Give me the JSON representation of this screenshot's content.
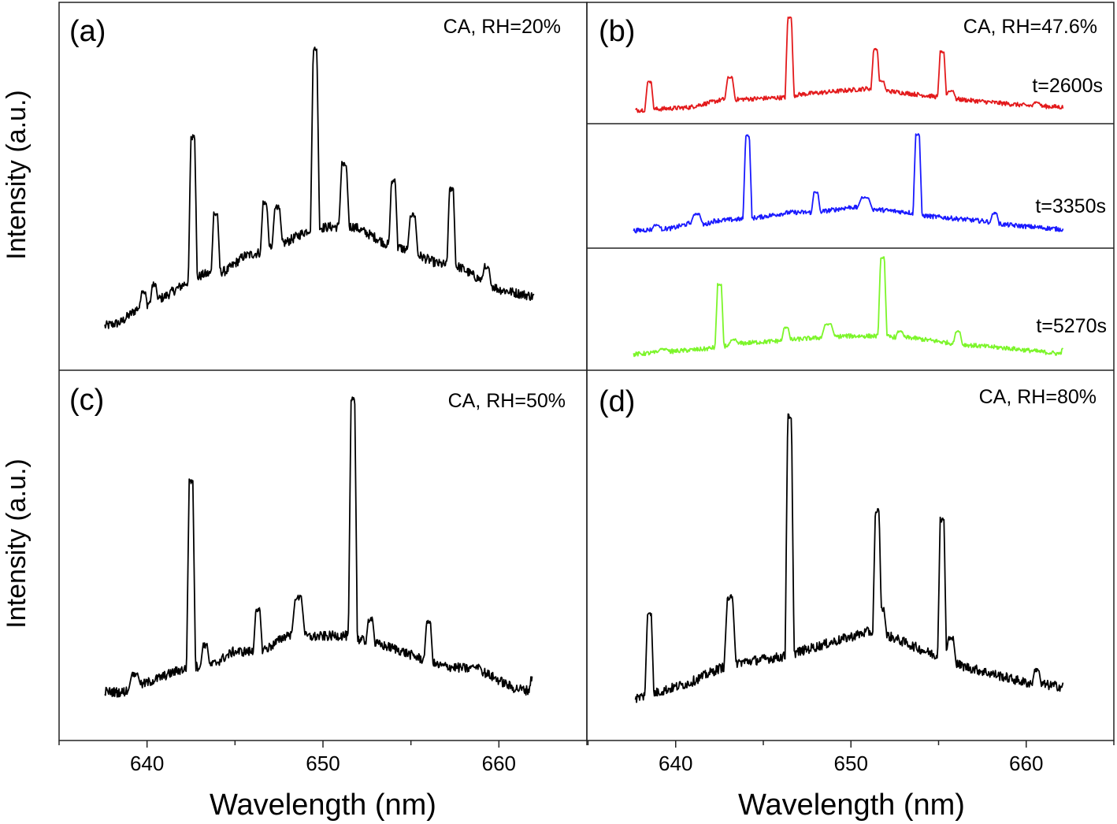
{
  "figure": {
    "ylabel": "Intensity (a.u.)",
    "xlabel": "Wavelength (nm)"
  },
  "chart_data": [
    {
      "type": "line",
      "panel": "(a)",
      "annotation": "CA, RH=20%",
      "xlabel": "Wavelength (nm)",
      "ylabel": "Intensity (a.u.)",
      "xlim": [
        635,
        665
      ],
      "ylim": [
        0,
        100
      ],
      "xticks": [
        640,
        650,
        660
      ],
      "grid": false,
      "series": [
        {
          "color": "#000000",
          "baseline": [
            [
              637.6,
              12
            ],
            [
              638.5,
              13
            ],
            [
              639.5,
              17
            ],
            [
              641,
              20
            ],
            [
              642.3,
              24
            ],
            [
              643.2,
              26
            ],
            [
              644.5,
              27
            ],
            [
              645.5,
              31
            ],
            [
              646.4,
              32
            ],
            [
              648,
              35
            ],
            [
              649.3,
              38.5
            ],
            [
              650.5,
              39
            ],
            [
              651.8,
              39
            ],
            [
              653,
              36
            ],
            [
              653.7,
              34
            ],
            [
              654.6,
              33
            ],
            [
              656.5,
              29
            ],
            [
              657.8,
              28
            ],
            [
              658.8,
              25
            ],
            [
              660,
              22
            ],
            [
              661,
              21
            ],
            [
              662,
              20
            ]
          ],
          "peaks": [
            [
              639.8,
              22,
              0.25
            ],
            [
              640.4,
              24,
              0.25
            ],
            [
              642.6,
              64,
              0.3
            ],
            [
              643.9,
              43,
              0.3
            ],
            [
              646.7,
              46,
              0.3
            ],
            [
              647.4,
              45,
              0.35
            ],
            [
              649.55,
              88,
              0.3
            ],
            [
              651.2,
              57,
              0.35
            ],
            [
              654.0,
              52,
              0.3
            ],
            [
              655.1,
              43,
              0.35
            ],
            [
              657.3,
              50,
              0.3
            ],
            [
              659.3,
              29,
              0.3
            ]
          ]
        }
      ]
    },
    {
      "type": "line",
      "panel": "(b)",
      "annotation": "CA, RH=47.6%",
      "xlabel": "Wavelength (nm)",
      "xlim": [
        635,
        665
      ],
      "ylim": [
        0,
        100
      ],
      "xticks": [
        640,
        650,
        660
      ],
      "grid": false,
      "series": [
        {
          "name": "t=2600s",
          "color": "#e31a1c",
          "baseline": [
            [
              637.7,
              11
            ],
            [
              640.8,
              13.5
            ],
            [
              642.7,
              20
            ],
            [
              643.5,
              20
            ],
            [
              646.2,
              21.6
            ],
            [
              647,
              24
            ],
            [
              651,
              29
            ],
            [
              652.3,
              26.6
            ],
            [
              655,
              22
            ],
            [
              656.2,
              20
            ],
            [
              660,
              15
            ],
            [
              662.1,
              13.6
            ]
          ],
          "peaks": [
            [
              638.5,
              35,
              0.3
            ],
            [
              643.1,
              39,
              0.35
            ],
            [
              646.5,
              88,
              0.3
            ],
            [
              651.4,
              62,
              0.3
            ],
            [
              651.75,
              36,
              0.3
            ],
            [
              655.2,
              60,
              0.3
            ],
            [
              655.7,
              27.5,
              0.35
            ],
            [
              660.6,
              18,
              0.3
            ]
          ]
        },
        {
          "name": "t=3350s",
          "color": "#1a1aff",
          "baseline": [
            [
              637.6,
              14
            ],
            [
              639.8,
              16
            ],
            [
              640.8,
              20
            ],
            [
              641.7,
              19
            ],
            [
              642.2,
              22
            ],
            [
              643.8,
              23.4
            ],
            [
              644.6,
              24.5
            ],
            [
              646.5,
              28.7
            ],
            [
              647.7,
              28.7
            ],
            [
              648.5,
              29.7
            ],
            [
              650,
              33
            ],
            [
              651.5,
              31
            ],
            [
              653.3,
              28.7
            ],
            [
              654.2,
              26
            ],
            [
              657.7,
              21.5
            ],
            [
              658.7,
              19
            ],
            [
              662.1,
              15
            ]
          ],
          "peaks": [
            [
              638.9,
              19,
              0.3
            ],
            [
              641.2,
              28,
              0.4
            ],
            [
              644.1,
              91,
              0.3
            ],
            [
              648.0,
              45.6,
              0.3
            ],
            [
              650.8,
              41.4,
              0.5
            ],
            [
              653.8,
              92,
              0.3
            ],
            [
              658.2,
              28.7,
              0.3
            ]
          ]
        },
        {
          "name": "t=5270s",
          "color": "#7cf52a",
          "baseline": [
            [
              637.6,
              13
            ],
            [
              639.8,
              15.5
            ],
            [
              641.7,
              17.4
            ],
            [
              643.7,
              22
            ],
            [
              645.8,
              24
            ],
            [
              647.3,
              25.8
            ],
            [
              649.6,
              28
            ],
            [
              651.3,
              28
            ],
            [
              653.5,
              26.5
            ],
            [
              655.8,
              22
            ],
            [
              656.7,
              20.6
            ],
            [
              659,
              18
            ],
            [
              661.9,
              13.5
            ],
            [
              662.1,
              17
            ]
          ],
          "peaks": [
            [
              639.3,
              18,
              0.4
            ],
            [
              642.5,
              71,
              0.3
            ],
            [
              643.3,
              25.8,
              0.3
            ],
            [
              646.3,
              35.7,
              0.3
            ],
            [
              648.7,
              38.5,
              0.45
            ],
            [
              651.8,
              93,
              0.3
            ],
            [
              652.8,
              32.5,
              0.3
            ],
            [
              656.1,
              32.5,
              0.3
            ]
          ]
        }
      ]
    },
    {
      "type": "line",
      "panel": "(c)",
      "annotation": "CA, RH=50%",
      "xlabel": "Wavelength (nm)",
      "ylabel": "Intensity (a.u.)",
      "xlim": [
        635,
        665
      ],
      "ylim": [
        0,
        100
      ],
      "xticks": [
        640,
        650,
        660
      ],
      "grid": false,
      "series": [
        {
          "color": "#000000",
          "baseline": [
            [
              637.6,
              13.2
            ],
            [
              638.6,
              13
            ],
            [
              640,
              15.6
            ],
            [
              641.7,
              18.8
            ],
            [
              642.8,
              20
            ],
            [
              643.8,
              20.6
            ],
            [
              644.9,
              24
            ],
            [
              646,
              24
            ],
            [
              646.9,
              25
            ],
            [
              648,
              28.7
            ],
            [
              649.3,
              28
            ],
            [
              651.2,
              28.4
            ],
            [
              652,
              27.3
            ],
            [
              654.1,
              24.8
            ],
            [
              655.6,
              22
            ],
            [
              656.6,
              20.2
            ],
            [
              658.9,
              19.1
            ],
            [
              660.8,
              14.2
            ],
            [
              661.7,
              13.5
            ],
            [
              661.9,
              18
            ]
          ],
          "peaks": [
            [
              639.3,
              18.5,
              0.4
            ],
            [
              642.5,
              70.6,
              0.3
            ],
            [
              643.3,
              26.4,
              0.3
            ],
            [
              646.3,
              36.3,
              0.3
            ],
            [
              648.6,
              39.4,
              0.45
            ],
            [
              651.7,
              93,
              0.3
            ],
            [
              652.7,
              33.4,
              0.3
            ],
            [
              656.0,
              32.5,
              0.3
            ],
            [
              658.7,
              20.6,
              0.4
            ]
          ]
        }
      ]
    },
    {
      "type": "line",
      "panel": "(d)",
      "annotation": "CA, RH=80%",
      "xlabel": "Wavelength (nm)",
      "xlim": [
        635,
        665
      ],
      "ylim": [
        0,
        100
      ],
      "xticks": [
        640,
        650,
        660
      ],
      "grid": false,
      "series": [
        {
          "color": "#000000",
          "baseline": [
            [
              637.7,
              11.4
            ],
            [
              638.8,
              12.8
            ],
            [
              640.8,
              15.6
            ],
            [
              642.5,
              19.5
            ],
            [
              643.5,
              21
            ],
            [
              646.2,
              22.7
            ],
            [
              646.9,
              23.8
            ],
            [
              651,
              29.4
            ],
            [
              652.3,
              28
            ],
            [
              654.8,
              23
            ],
            [
              656.3,
              20.2
            ],
            [
              660,
              15.6
            ],
            [
              662.1,
              14.5
            ]
          ],
          "peaks": [
            [
              638.5,
              35,
              0.3
            ],
            [
              643.1,
              39.4,
              0.4
            ],
            [
              646.5,
              88.3,
              0.3
            ],
            [
              651.5,
              62.8,
              0.3
            ],
            [
              651.75,
              36,
              0.35
            ],
            [
              655.2,
              60.3,
              0.3
            ],
            [
              655.7,
              28.4,
              0.35
            ],
            [
              660.6,
              19.5,
              0.3
            ]
          ]
        }
      ]
    }
  ]
}
